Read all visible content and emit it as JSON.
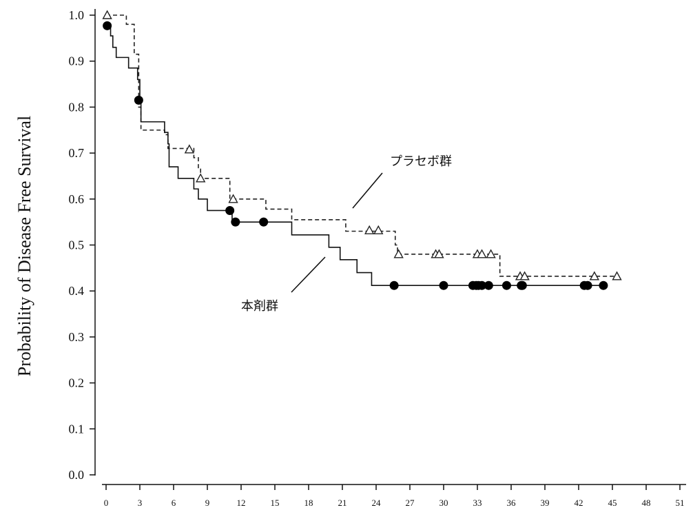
{
  "chart_data": {
    "type": "line",
    "title": "",
    "xlabel": "",
    "ylabel": "Probability of Disease Free Survival",
    "xlim": [
      0,
      51
    ],
    "ylim": [
      0,
      1
    ],
    "x_ticks": [
      "0",
      "3",
      "6",
      "9",
      "12",
      "15",
      "18",
      "21",
      "24",
      "27",
      "30",
      "33",
      "36",
      "39",
      "42",
      "45",
      "48",
      "51"
    ],
    "y_ticks": [
      "0.0",
      "0.1",
      "0.2",
      "0.3",
      "0.4",
      "0.5",
      "0.6",
      "0.7",
      "0.8",
      "0.9",
      "1.0"
    ],
    "grid": false,
    "annotations": [
      {
        "text": "プラセボ群",
        "series": "placebo"
      },
      {
        "text": "本剤群",
        "series": "drug"
      }
    ],
    "series": [
      {
        "id": "placebo",
        "style": "dashed",
        "marker": "triangle",
        "color": "#222222",
        "steps": [
          [
            0,
            1.0
          ],
          [
            1.8,
            0.98
          ],
          [
            2.5,
            0.915
          ],
          [
            2.9,
            0.8
          ],
          [
            3.1,
            0.75
          ],
          [
            5.2,
            0.74
          ],
          [
            5.5,
            0.71
          ],
          [
            7.8,
            0.69
          ],
          [
            8.2,
            0.665
          ],
          [
            8.4,
            0.645
          ],
          [
            11.0,
            0.6
          ],
          [
            14.0,
            0.6
          ],
          [
            14.2,
            0.578
          ],
          [
            16.5,
            0.555
          ],
          [
            21.3,
            0.53
          ],
          [
            25.7,
            0.5
          ],
          [
            25.9,
            0.48
          ],
          [
            35.0,
            0.432
          ],
          [
            45.4,
            0.432
          ]
        ],
        "censored": [
          [
            0.1,
            1.0
          ],
          [
            7.4,
            0.708
          ],
          [
            8.4,
            0.645
          ],
          [
            11.3,
            0.6
          ],
          [
            23.4,
            0.532
          ],
          [
            24.2,
            0.532
          ],
          [
            26.0,
            0.48
          ],
          [
            29.3,
            0.48
          ],
          [
            29.6,
            0.48
          ],
          [
            33.0,
            0.48
          ],
          [
            33.4,
            0.48
          ],
          [
            34.2,
            0.48
          ],
          [
            36.8,
            0.432
          ],
          [
            37.2,
            0.432
          ],
          [
            43.4,
            0.432
          ],
          [
            45.4,
            0.432
          ]
        ]
      },
      {
        "id": "drug",
        "style": "solid",
        "marker": "circle",
        "color": "#111111",
        "steps": [
          [
            0,
            0.977
          ],
          [
            0.4,
            0.955
          ],
          [
            0.6,
            0.93
          ],
          [
            0.9,
            0.908
          ],
          [
            2.0,
            0.885
          ],
          [
            2.8,
            0.86
          ],
          [
            3.0,
            0.815
          ],
          [
            3.1,
            0.768
          ],
          [
            5.2,
            0.745
          ],
          [
            5.5,
            0.72
          ],
          [
            5.6,
            0.67
          ],
          [
            6.4,
            0.645
          ],
          [
            7.8,
            0.622
          ],
          [
            8.2,
            0.6
          ],
          [
            9.0,
            0.575
          ],
          [
            11.2,
            0.55
          ],
          [
            16.5,
            0.522
          ],
          [
            19.8,
            0.495
          ],
          [
            20.8,
            0.468
          ],
          [
            22.3,
            0.44
          ],
          [
            23.6,
            0.412
          ],
          [
            44.2,
            0.412
          ]
        ],
        "censored": [
          [
            0.1,
            0.977
          ],
          [
            2.9,
            0.815
          ],
          [
            11.0,
            0.575
          ],
          [
            11.5,
            0.55
          ],
          [
            14.0,
            0.55
          ],
          [
            25.6,
            0.412
          ],
          [
            30.0,
            0.412
          ],
          [
            32.6,
            0.412
          ],
          [
            32.9,
            0.412
          ],
          [
            33.1,
            0.412
          ],
          [
            33.4,
            0.412
          ],
          [
            34.0,
            0.412
          ],
          [
            35.6,
            0.412
          ],
          [
            36.9,
            0.412
          ],
          [
            37.0,
            0.412
          ],
          [
            42.5,
            0.412
          ],
          [
            42.8,
            0.412
          ],
          [
            44.2,
            0.412
          ]
        ]
      }
    ]
  }
}
